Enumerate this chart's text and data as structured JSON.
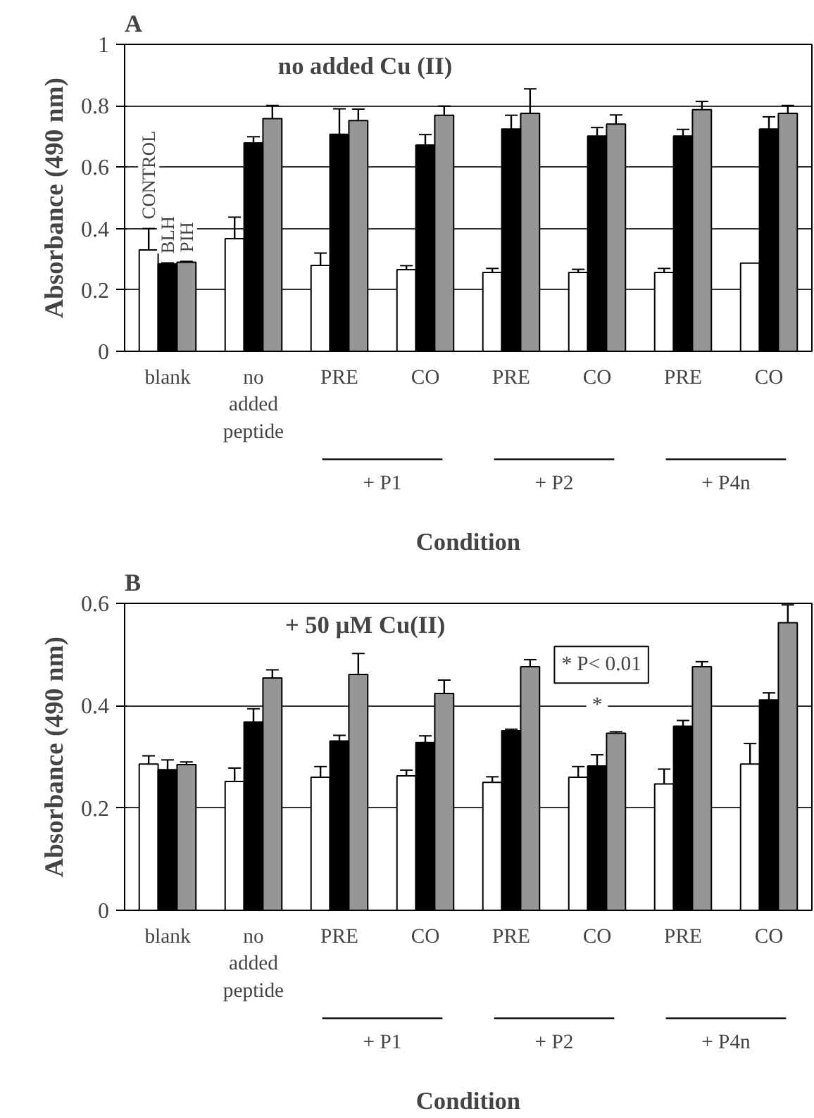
{
  "chart_data": [
    {
      "type": "bar",
      "title": "A",
      "subtitle": "no added Cu (II)",
      "xlabel": "Condition",
      "ylabel": "Absorbance (490 nm)",
      "categories": [
        "blank",
        "no added peptide",
        "PRE",
        "CO",
        "PRE",
        "CO",
        "PRE",
        "CO"
      ],
      "series": [
        {
          "name": "CONTROL",
          "color": "#ffffff",
          "values": [
            0.33,
            0.367,
            0.28,
            0.266,
            0.257,
            0.257,
            0.257,
            0.287
          ],
          "errors": [
            0.07,
            0.07,
            0.04,
            0.013,
            0.013,
            0.01,
            0.013,
            null
          ]
        },
        {
          "name": "BLH",
          "color": "#000000",
          "values": [
            0.285,
            0.679,
            0.707,
            0.672,
            0.724,
            0.701,
            0.701,
            0.724
          ],
          "errors": [
            0.003,
            0.02,
            0.083,
            0.034,
            0.045,
            0.028,
            0.022,
            0.04
          ]
        },
        {
          "name": "PIH",
          "color": "#969696",
          "values": [
            0.29,
            0.758,
            0.752,
            0.769,
            0.775,
            0.74,
            0.787,
            0.775
          ],
          "errors": [
            0.003,
            0.043,
            0.037,
            0.03,
            0.08,
            0.03,
            0.027,
            0.026
          ]
        }
      ],
      "ylim": [
        0,
        1
      ],
      "yticks": [
        0,
        0.2,
        0.4,
        0.6,
        0.8,
        1
      ],
      "grid": "y",
      "legend": "top left",
      "annotations": [
        "+ P1",
        "+ P2",
        "+ P4n"
      ]
    },
    {
      "type": "bar",
      "title": "B",
      "subtitle": "+ 50 µM Cu(II)",
      "xlabel": "Condition",
      "ylabel": "Absorbance (490 nm)",
      "categories": [
        "blank",
        "no added peptide",
        "PRE",
        "CO",
        "PRE",
        "CO",
        "PRE",
        "CO"
      ],
      "series": [
        {
          "color": "#ffffff",
          "values": [
            0.286,
            0.252,
            0.26,
            0.263,
            0.25,
            0.26,
            0.247,
            0.286
          ],
          "errors": [
            0.016,
            0.026,
            0.021,
            0.011,
            0.011,
            0.021,
            0.029,
            0.04
          ]
        },
        {
          "color": "#000000",
          "values": [
            0.275,
            0.368,
            0.331,
            0.328,
            0.351,
            0.282,
            0.36,
            0.411
          ],
          "errors": [
            0.019,
            0.026,
            0.011,
            0.013,
            0.003,
            0.022,
            0.011,
            0.014
          ]
        },
        {
          "color": "#969696",
          "values": [
            0.285,
            0.454,
            0.461,
            0.424,
            0.476,
            0.346,
            0.476,
            0.562
          ],
          "errors": [
            0.005,
            0.016,
            0.041,
            0.026,
            0.014,
            0.003,
            0.01,
            0.035
          ]
        }
      ],
      "ylim": [
        0,
        0.6
      ],
      "yticks": [
        0,
        0.2,
        0.4,
        0.6
      ],
      "grid": "y",
      "annotations": [
        "+ P1",
        "+ P2",
        "+ P4n",
        "* P< 0.01",
        "*"
      ]
    }
  ]
}
